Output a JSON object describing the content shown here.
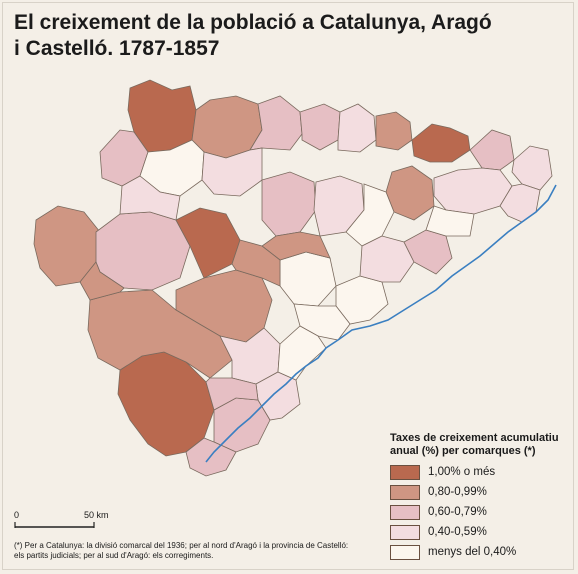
{
  "title": {
    "line1": "El creixement de la població a Catalunya, Aragó",
    "line2": "i Castelló. 1787-1857"
  },
  "legend": {
    "title_line1": "Taxes de creixement acumulatiu",
    "title_line2": "anual (%) per comarques (*)",
    "items": [
      {
        "label": "1,00% o més",
        "color": "#b9694f"
      },
      {
        "label": "0,80-0,99%",
        "color": "#cf9683"
      },
      {
        "label": "0,60-0,79%",
        "color": "#e6bfc4"
      },
      {
        "label": "0,40-0,59%",
        "color": "#f3dde0"
      },
      {
        "label": "menys del 0,40%",
        "color": "#fcf6ee"
      }
    ]
  },
  "scale": {
    "min_label": "0",
    "max_label": "50 km"
  },
  "footnote": {
    "line1": "(*) Per a Catalunya: la divisió comarcal del 1936; per al nord d'Aragó i la provincia de Castelló:",
    "line2": "els partits judicials; per al sud d'Aragó: els corregiments."
  },
  "colors": {
    "background": "#f4efe7",
    "coast": "#3a7fc1",
    "border": "#7a6a5e"
  },
  "regions": [
    {
      "id": "c1",
      "class": 0
    },
    {
      "id": "c2",
      "class": 1
    },
    {
      "id": "c3",
      "class": 2
    },
    {
      "id": "c4",
      "class": 2
    },
    {
      "id": "c5",
      "class": 3
    },
    {
      "id": "c6",
      "class": 1
    },
    {
      "id": "c7",
      "class": 2
    },
    {
      "id": "c8",
      "class": 0
    },
    {
      "id": "c9",
      "class": 2
    },
    {
      "id": "c10",
      "class": 3
    },
    {
      "id": "c11",
      "class": 4
    },
    {
      "id": "c12",
      "class": 3
    },
    {
      "id": "c13",
      "class": 1
    },
    {
      "id": "c14",
      "class": 1
    },
    {
      "id": "c15",
      "class": 3
    },
    {
      "id": "c16",
      "class": 2
    },
    {
      "id": "c17",
      "class": 1
    },
    {
      "id": "c18",
      "class": 0
    },
    {
      "id": "c19",
      "class": 1
    },
    {
      "id": "c20",
      "class": 2
    },
    {
      "id": "c21",
      "class": 3
    },
    {
      "id": "c22",
      "class": 4
    },
    {
      "id": "c23",
      "class": 3
    },
    {
      "id": "c24",
      "class": 4
    },
    {
      "id": "c25",
      "class": 1
    },
    {
      "id": "c26",
      "class": 2
    },
    {
      "id": "c27",
      "class": 3
    },
    {
      "id": "c28",
      "class": 4
    },
    {
      "id": "c29",
      "class": 0
    },
    {
      "id": "c30",
      "class": 1
    },
    {
      "id": "c31",
      "class": 3
    },
    {
      "id": "c32",
      "class": 2
    },
    {
      "id": "c33",
      "class": 4
    },
    {
      "id": "c34",
      "class": 1
    },
    {
      "id": "c35",
      "class": 3
    },
    {
      "id": "c36",
      "class": 4
    },
    {
      "id": "c37",
      "class": 2
    },
    {
      "id": "c38",
      "class": 4
    },
    {
      "id": "c39",
      "class": 3
    },
    {
      "id": "c40",
      "class": 2
    }
  ]
}
